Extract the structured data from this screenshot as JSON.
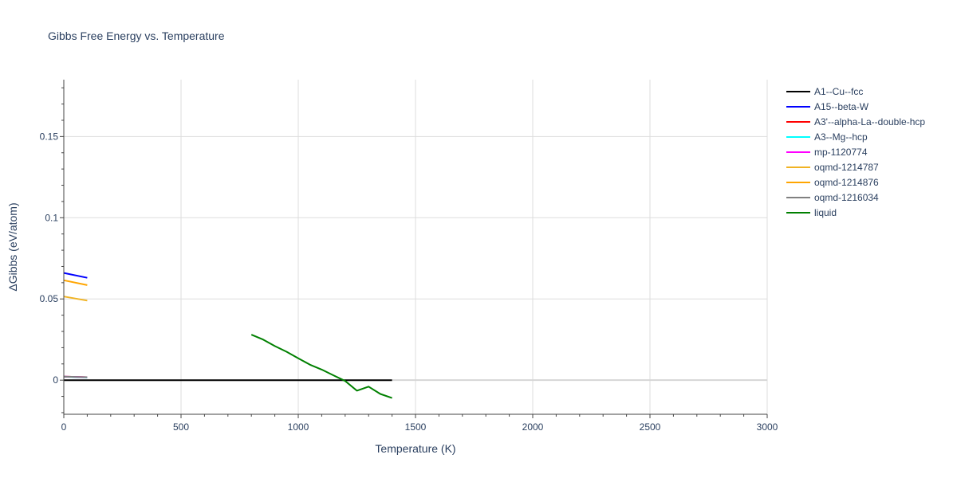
{
  "chart_data": {
    "type": "line",
    "title": "Gibbs Free Energy vs. Temperature",
    "xlabel": "Temperature (K)",
    "ylabel": "ΔGibbs (eV/atom)",
    "xlim": [
      0,
      3000
    ],
    "ylim": [
      -0.021,
      0.185
    ],
    "grid": true,
    "legend_position": "right",
    "x_ticks": [
      0,
      500,
      1000,
      1500,
      2000,
      2500,
      3000
    ],
    "x_tick_labels": [
      "0",
      "500",
      "1000",
      "1500",
      "2000",
      "2500",
      "3000"
    ],
    "y_ticks": [
      0,
      0.05,
      0.1,
      0.15
    ],
    "y_tick_labels": [
      "0",
      "0.05",
      "0.1",
      "0.15"
    ],
    "series": [
      {
        "name": "A1--Cu--fcc",
        "color": "#000000",
        "x": [
          0,
          100,
          200,
          300,
          400,
          500,
          600,
          700,
          800,
          900,
          1000,
          1100,
          1200,
          1300,
          1400
        ],
        "y": [
          0,
          0,
          0,
          0,
          0,
          0,
          0,
          0,
          0,
          0,
          0,
          0,
          0,
          0,
          0
        ]
      },
      {
        "name": "A15--beta-W",
        "color": "#0000ff",
        "x": [
          0,
          100
        ],
        "y": [
          0.066,
          0.063
        ]
      },
      {
        "name": "A3'--alpha-La--double-hcp",
        "color": "#ff0000",
        "x": [
          0,
          100
        ],
        "y": [
          0.0022,
          0.0018
        ]
      },
      {
        "name": "A3--Mg--hcp",
        "color": "#00ffff",
        "x": [
          0,
          100
        ],
        "y": [
          0.0021,
          0.0017
        ]
      },
      {
        "name": "mp-1120774",
        "color": "#ff00ff",
        "x": [
          0,
          100
        ],
        "y": [
          0.0022,
          0.0018
        ]
      },
      {
        "name": "oqmd-1214787",
        "color": "#f0b323",
        "x": [
          0,
          100
        ],
        "y": [
          0.0515,
          0.049
        ]
      },
      {
        "name": "oqmd-1214876",
        "color": "#ffa500",
        "x": [
          0,
          100
        ],
        "y": [
          0.0615,
          0.0585
        ]
      },
      {
        "name": "oqmd-1216034",
        "color": "#808080",
        "x": [
          0,
          100
        ],
        "y": [
          0.0022,
          0.0018
        ]
      },
      {
        "name": "liquid",
        "color": "#008000",
        "x": [
          800,
          850,
          900,
          950,
          1000,
          1050,
          1100,
          1150,
          1200,
          1250,
          1300,
          1350,
          1400
        ],
        "y": [
          0.028,
          0.025,
          0.021,
          0.0175,
          0.0135,
          0.0095,
          0.0065,
          0.003,
          -0.0005,
          -0.0065,
          -0.004,
          -0.0085,
          -0.011
        ]
      }
    ]
  }
}
